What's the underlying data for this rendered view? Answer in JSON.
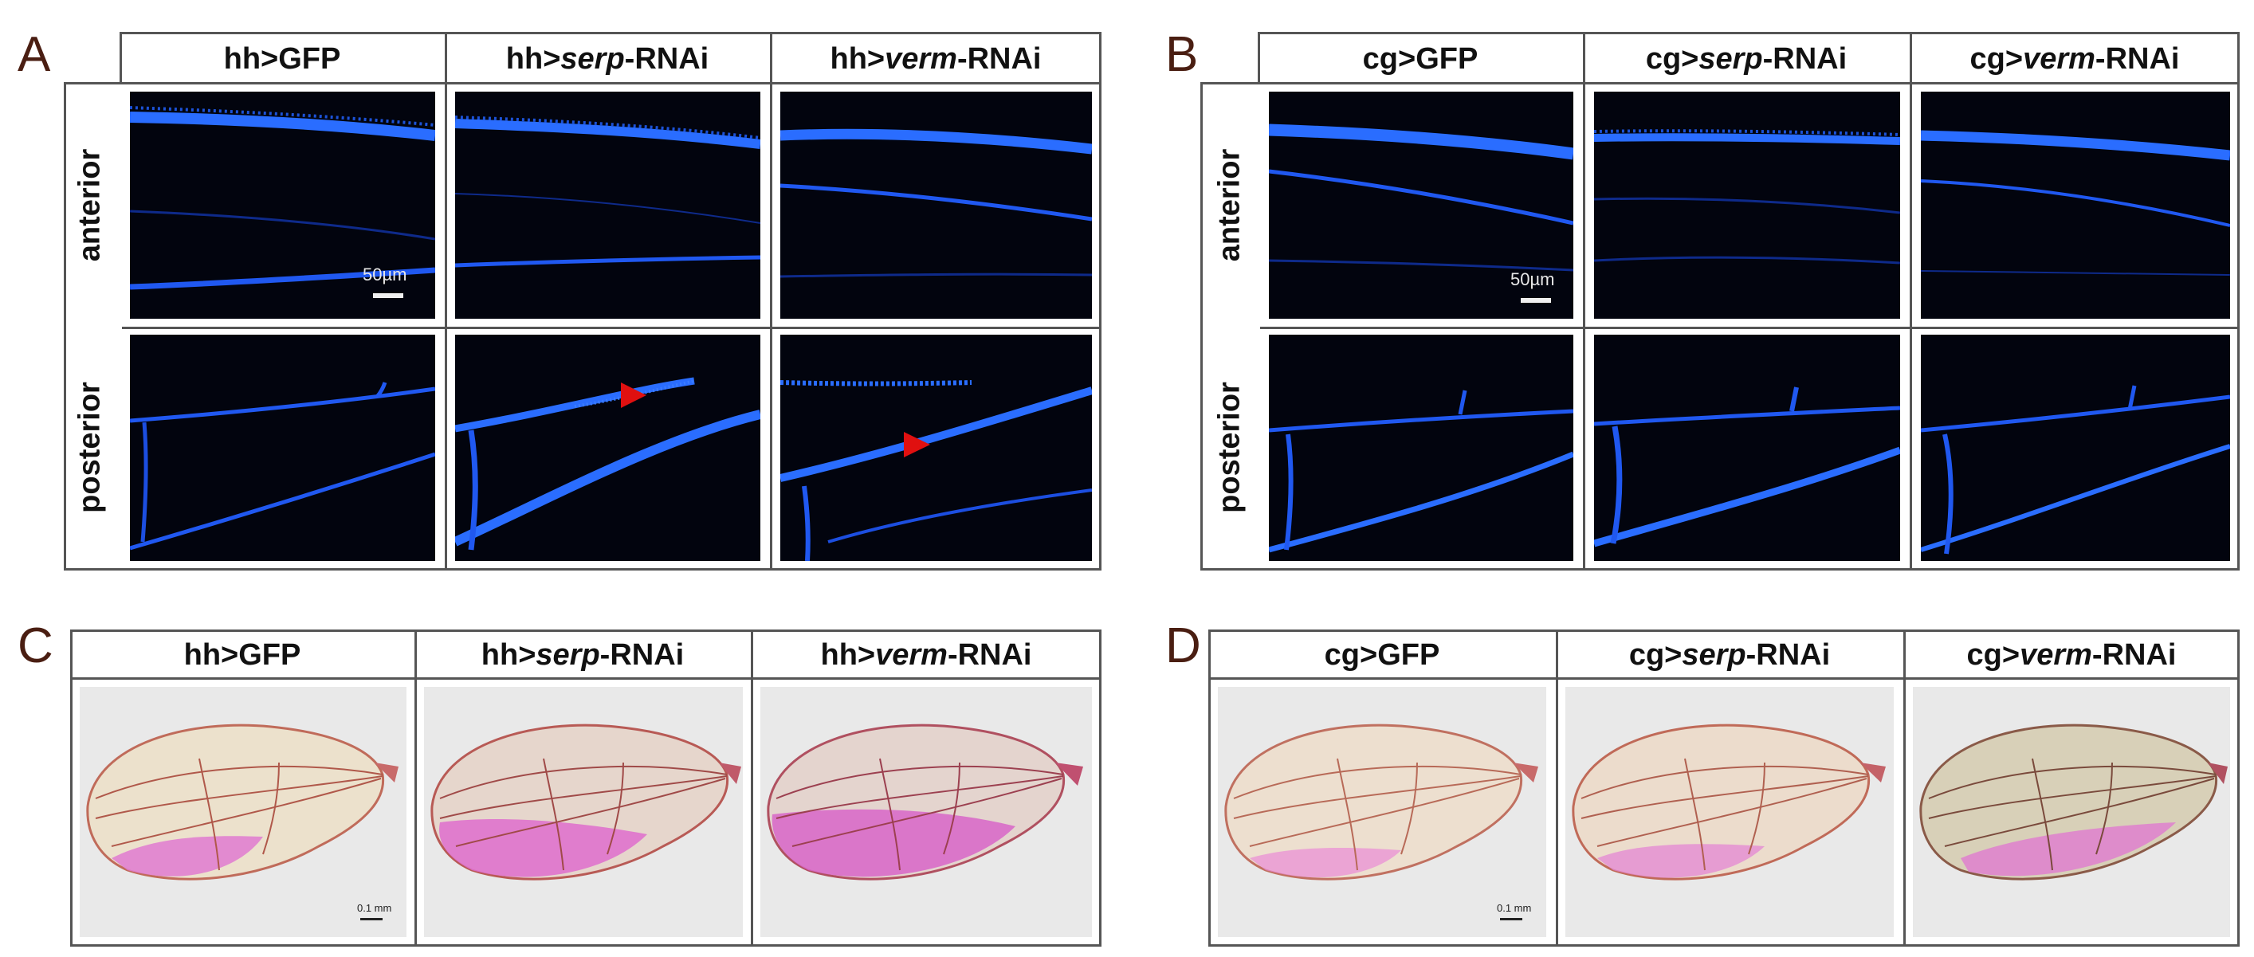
{
  "panel_a": {
    "letter": "A",
    "headers": [
      {
        "pre": "hh>",
        "gene": "GFP",
        "post": "",
        "italic": false
      },
      {
        "pre": "hh>",
        "gene": "serp",
        "post": "-RNAi",
        "italic": true
      },
      {
        "pre": "hh>",
        "gene": "verm",
        "post": "-RNAi",
        "italic": true
      }
    ],
    "rows": [
      "anterior",
      "posterior"
    ],
    "scale_bar": "50µm"
  },
  "panel_b": {
    "letter": "B",
    "headers": [
      {
        "pre": "cg>",
        "gene": "GFP",
        "post": "",
        "italic": false
      },
      {
        "pre": "cg>",
        "gene": "serp",
        "post": "-RNAi",
        "italic": true
      },
      {
        "pre": "cg>",
        "gene": "verm",
        "post": "-RNAi",
        "italic": true
      }
    ],
    "rows": [
      "anterior",
      "posterior"
    ],
    "scale_bar": "50µm"
  },
  "panel_c": {
    "letter": "C",
    "headers": [
      {
        "pre": "hh>",
        "gene": "GFP",
        "post": "",
        "italic": false
      },
      {
        "pre": "hh>",
        "gene": "serp",
        "post": "-RNAi",
        "italic": true
      },
      {
        "pre": "hh>",
        "gene": "verm",
        "post": "-RNAi",
        "italic": true
      }
    ],
    "scale_bar": "0.1 mm"
  },
  "panel_d": {
    "letter": "D",
    "headers": [
      {
        "pre": "cg>",
        "gene": "GFP",
        "post": "",
        "italic": false
      },
      {
        "pre": "cg>",
        "gene": "serp",
        "post": "-RNAi",
        "italic": true
      },
      {
        "pre": "cg>",
        "gene": "verm",
        "post": "-RNAi",
        "italic": true
      }
    ],
    "scale_bar": "0.1 mm"
  },
  "colors": {
    "fluorescence": "#1f5cff",
    "arrowhead": "#e01010",
    "panel_letter": "#4a1e12",
    "wing_stain": "#e07ad0"
  }
}
